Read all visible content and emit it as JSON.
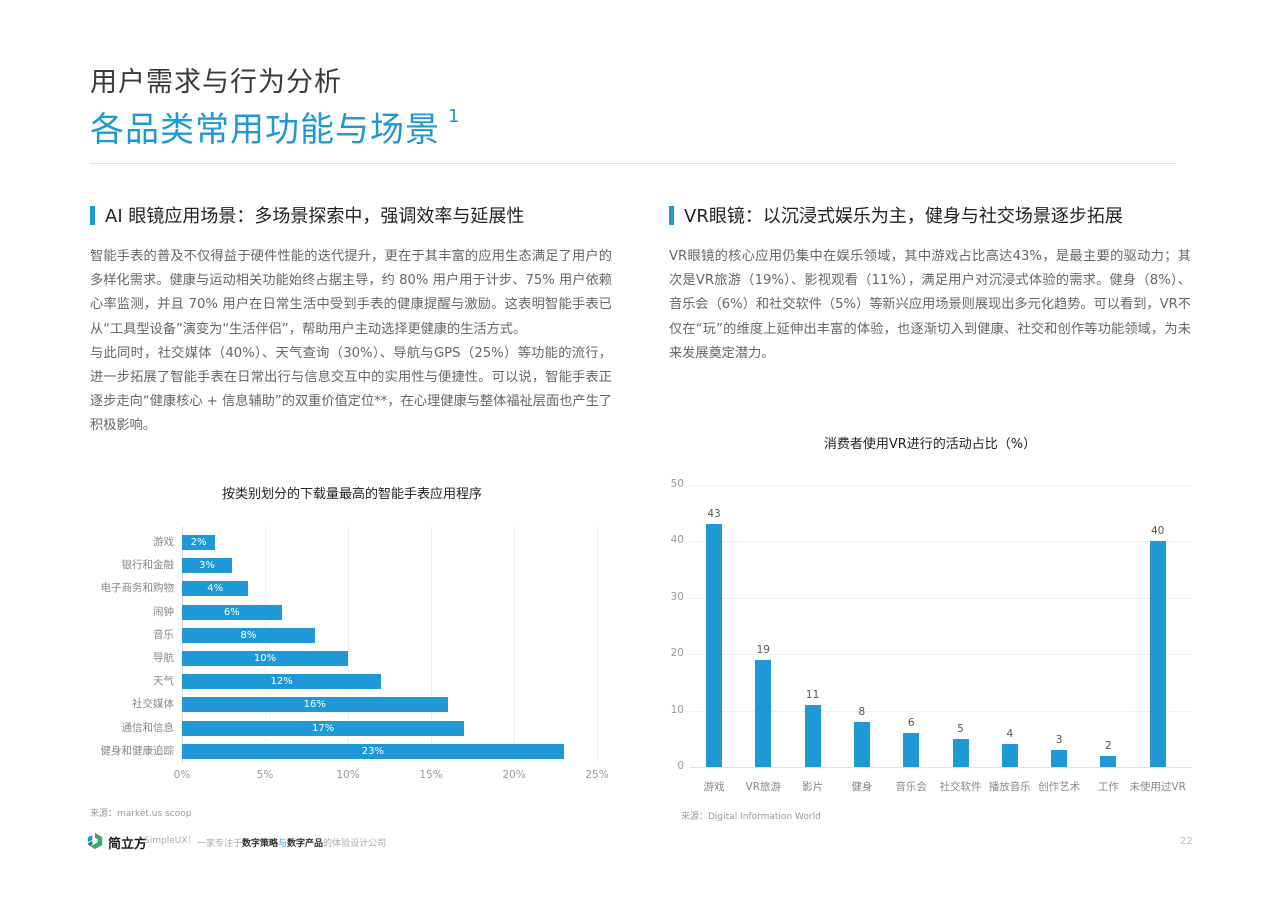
{
  "header": {
    "kicker": "用户需求与行为分析",
    "title": "各品类常用功能与场景",
    "title_superscript": "1"
  },
  "left": {
    "heading": "AI 眼镜应用场景：多场景探索中，强调效率与延展性",
    "paragraphs": [
      "智能手表的普及不仅得益于硬件性能的迭代提升，更在于其丰富的应用生态满足了用户的多样化需求。健康与运动相关功能始终占据主导，约 80% 用户用于计步、75% 用户依赖心率监测，并且 70% 用户在日常生活中受到手表的健康提醒与激励。这表明智能手表已从“工具型设备”演变为“生活伴侣”，帮助用户主动选择更健康的生活方式。",
      "与此同时，社交媒体（40%）、天气查询（30%）、导航与GPS（25%）等功能的流行，进一步拓展了智能手表在日常出行与信息交互中的实用性与便捷性。可以说，智能手表正逐步走向“健康核心 + 信息辅助”的双重价值定位**，在心理健康与整体福祉层面也产生了积极影响。"
    ],
    "source": "来源：market.us scoop"
  },
  "right": {
    "heading": "VR眼镜：以沉浸式娱乐为主，健身与社交场景逐步拓展",
    "paragraphs": [
      "VR眼镜的核心应用仍集中在娱乐领域，其中游戏占比高达43%，是最主要的驱动力；其次是VR旅游（19%）、影视观看（11%），满足用户对沉浸式体验的需求。健身（8%）、音乐会（6%）和社交软件（5%）等新兴应用场景则展现出多元化趋势。可以看到，VR不仅在“玩”的维度上延伸出丰富的体验，也逐渐切入到健康、社交和创作等功能领域，为未来发展奠定潜力。"
    ],
    "source": "来源：Digital Information World"
  },
  "footer": {
    "brand": "简立方",
    "brand_en": "SimpleUX",
    "separator": "|",
    "tagline_pre": "一家专注于",
    "tagline_b1": "数字策略",
    "tagline_mid": "与",
    "tagline_b2": "数字产品",
    "tagline_post": "的体验设计公司",
    "page_number": "22"
  },
  "colors": {
    "accent": "#1e98d7",
    "bar": "#1e98d7"
  },
  "chart_data": [
    {
      "type": "bar",
      "orientation": "horizontal",
      "title": "按类别划分的下载量最高的智能手表应用程序",
      "categories": [
        "游戏",
        "银行和金融",
        "电子商务和购物",
        "闹钟",
        "音乐",
        "导航",
        "天气",
        "社交媒体",
        "通信和信息",
        "健身和健康追踪"
      ],
      "values": [
        2,
        3,
        4,
        6,
        8,
        10,
        12,
        16,
        17,
        23
      ],
      "value_labels": [
        "2%",
        "3%",
        "4%",
        "6%",
        "8%",
        "10%",
        "12%",
        "16%",
        "17%",
        "23%"
      ],
      "xlabel": "",
      "ylabel": "",
      "xlim": [
        0,
        25
      ],
      "xticks": [
        "0%",
        "5%",
        "10%",
        "15%",
        "20%",
        "25%"
      ],
      "grid": true,
      "legend": "none"
    },
    {
      "type": "bar",
      "orientation": "vertical",
      "title": "消费者使用VR进行的活动占比（%）",
      "categories": [
        "游戏",
        "VR旅游",
        "影片",
        "健身",
        "音乐会",
        "社交软件",
        "播放音乐",
        "创作艺术",
        "工作",
        "未使用过VR"
      ],
      "values": [
        43,
        19,
        11,
        8,
        6,
        5,
        4,
        3,
        2,
        40
      ],
      "xlabel": "",
      "ylabel": "",
      "ylim": [
        0,
        50
      ],
      "yticks": [
        "0",
        "10",
        "20",
        "30",
        "40",
        "50"
      ],
      "grid": true,
      "legend": "none"
    }
  ]
}
